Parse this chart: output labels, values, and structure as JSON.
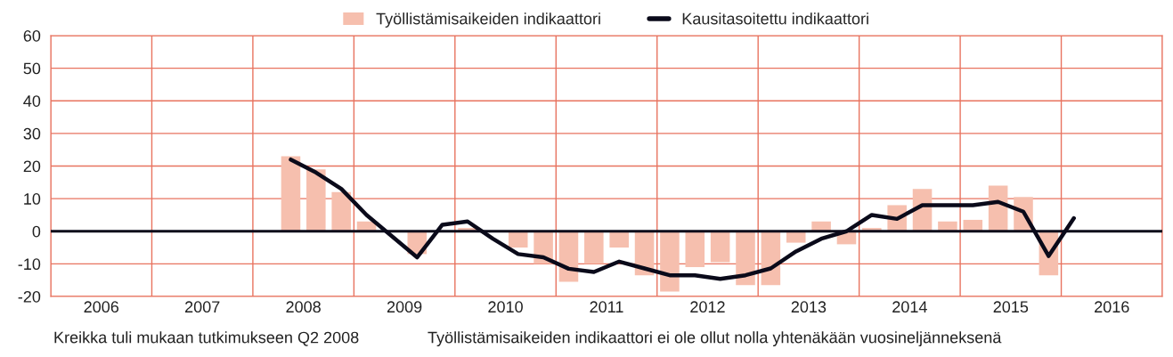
{
  "chart_data": {
    "type": "bar",
    "series": [
      {
        "name": "Työllistämisaikeiden indikaattori",
        "color": "#f6bfae",
        "x": [
          2008.375,
          2008.625,
          2008.875,
          2009.125,
          2009.375,
          2009.625,
          2009.875,
          2010.125,
          2010.375,
          2010.625,
          2010.875,
          2011.125,
          2011.375,
          2011.625,
          2011.875,
          2012.125,
          2012.375,
          2012.625,
          2012.875,
          2013.125,
          2013.375,
          2013.625,
          2013.875,
          2014.125,
          2014.375,
          2014.625,
          2014.875,
          2015.125,
          2015.375,
          2015.625,
          2015.875
        ],
        "values": [
          23,
          19,
          12,
          3,
          0,
          -7,
          0,
          1,
          0,
          -5,
          -10,
          -15.5,
          -10,
          -5,
          -13.5,
          -18.5,
          -11,
          -9.5,
          -16.5,
          -16.5,
          -3.5,
          3,
          -4,
          1,
          8,
          13,
          3,
          3.5,
          14,
          10.5,
          -13.5
        ]
      },
      {
        "name": "Kausitasoitettu indikaattori",
        "type": "line",
        "color": "#0a0a1a",
        "x": [
          2008.375,
          2008.625,
          2008.875,
          2009.125,
          2009.375,
          2009.625,
          2009.875,
          2010.125,
          2010.375,
          2010.625,
          2010.875,
          2011.125,
          2011.375,
          2011.625,
          2011.875,
          2012.125,
          2012.375,
          2012.625,
          2012.875,
          2013.125,
          2013.375,
          2013.625,
          2013.875,
          2014.125,
          2014.375,
          2014.625,
          2014.875,
          2015.125,
          2015.375,
          2015.625,
          2015.875,
          2016.125
        ],
        "values": [
          22,
          18,
          13,
          5,
          -1.5,
          -8,
          2,
          3,
          -2.3,
          -7,
          -8,
          -11.5,
          -12.5,
          -9.3,
          -11.4,
          -13.5,
          -13.5,
          -14.6,
          -13.5,
          -11.4,
          -6.2,
          -2.3,
          0,
          5,
          3.8,
          8,
          8,
          8,
          9,
          6,
          -7.6,
          4
        ],
        "marker": "none",
        "line_style": "solid"
      }
    ],
    "xlim": [
      2006,
      2017
    ],
    "xticks": [
      {
        "value": 2006,
        "label": null
      },
      {
        "value": 2007,
        "label": null
      },
      {
        "value": 2008,
        "label": null
      },
      {
        "value": 2009,
        "label": null
      },
      {
        "value": 2010,
        "label": null
      },
      {
        "value": 2011,
        "label": null
      },
      {
        "value": 2012,
        "label": null
      },
      {
        "value": 2013,
        "label": null
      },
      {
        "value": 2014,
        "label": null
      },
      {
        "value": 2015,
        "label": null
      },
      {
        "value": 2016,
        "label": null
      },
      {
        "value": 2017,
        "label": null
      },
      {
        "value": 2006.5,
        "label": "2006"
      },
      {
        "value": 2007.5,
        "label": "2007"
      },
      {
        "value": 2008.5,
        "label": "2008"
      },
      {
        "value": 2009.5,
        "label": "2009"
      },
      {
        "value": 2010.5,
        "label": "2010"
      },
      {
        "value": 2011.5,
        "label": "2011"
      },
      {
        "value": 2012.5,
        "label": "2012"
      },
      {
        "value": 2013.5,
        "label": "2013"
      },
      {
        "value": 2014.5,
        "label": "2014"
      },
      {
        "value": 2015.5,
        "label": "2015"
      },
      {
        "value": 2016.5,
        "label": "2016"
      }
    ],
    "ylim": [
      -20,
      60
    ],
    "yticks": [
      -20,
      -10,
      0,
      10,
      20,
      30,
      40,
      50,
      60
    ],
    "grid": true,
    "legend": "top",
    "ref_lines": [
      {
        "axis": "y",
        "value": 0,
        "color": "#0a0a1a"
      }
    ],
    "annotations": [
      "Kreikka tuli mukaan tutkimukseen Q2 2008",
      "Työllistämisaikeiden indikaattori ei ole ollut nolla yhtenäkään vuosineljänneksenä"
    ]
  }
}
